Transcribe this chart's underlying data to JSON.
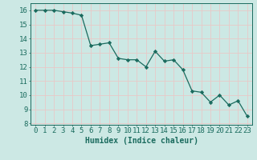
{
  "x": [
    0,
    1,
    2,
    3,
    4,
    5,
    6,
    7,
    8,
    9,
    10,
    11,
    12,
    13,
    14,
    15,
    16,
    17,
    18,
    19,
    20,
    21,
    22,
    23
  ],
  "y": [
    16.0,
    16.0,
    16.0,
    15.9,
    15.8,
    15.65,
    13.5,
    13.6,
    13.7,
    12.6,
    12.5,
    12.5,
    12.0,
    13.1,
    12.4,
    12.5,
    11.8,
    10.3,
    10.2,
    9.5,
    10.0,
    9.3,
    9.6,
    8.5
  ],
  "line_color": "#1a6b5e",
  "marker_color": "#1a6b5e",
  "bg_color": "#cce8e4",
  "grid_color": "#e8c8c8",
  "xlabel": "Humidex (Indice chaleur)",
  "ylim": [
    7.9,
    16.5
  ],
  "xlim": [
    -0.5,
    23.5
  ],
  "yticks": [
    8,
    9,
    10,
    11,
    12,
    13,
    14,
    15,
    16
  ],
  "xticks": [
    0,
    1,
    2,
    3,
    4,
    5,
    6,
    7,
    8,
    9,
    10,
    11,
    12,
    13,
    14,
    15,
    16,
    17,
    18,
    19,
    20,
    21,
    22,
    23
  ],
  "tick_color": "#1a6b5e",
  "xlabel_fontsize": 7,
  "tick_fontsize": 6.5
}
